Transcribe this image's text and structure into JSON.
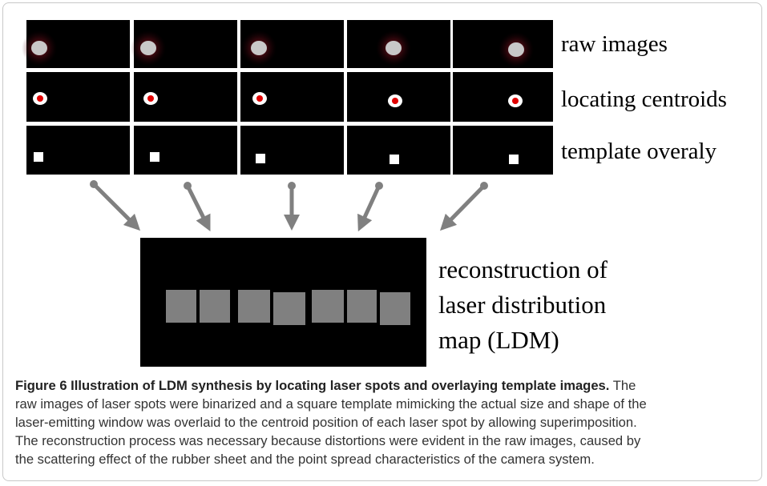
{
  "figure": {
    "row_labels": [
      "raw images",
      "locating centroids",
      "template overaly"
    ],
    "reconstruction_label": [
      "reconstruction of",
      "laser distribution",
      "map (LDM)"
    ]
  },
  "caption": {
    "label": "Figure 6",
    "title": "Illustration of LDM synthesis by locating laser spots and overlaying template images.",
    "lines": [
      "The",
      "raw images of laser spots were binarized and a square template mimicking the actual size and shape of the",
      "laser-emitting window was overlaid to the centroid position of each laser spot by allowing superimposition.",
      "The reconstruction process was necessary because distortions were evident in the raw images, caused by",
      "the scattering effect of the rubber sheet and the point spread characteristics of the camera system."
    ]
  }
}
